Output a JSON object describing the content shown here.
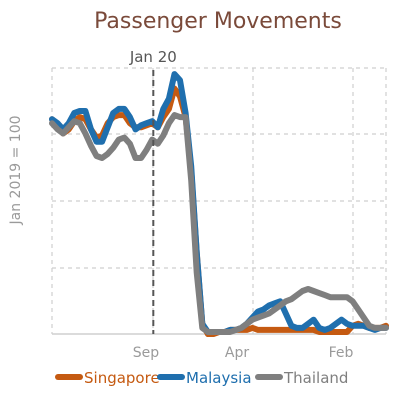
{
  "chart_data": {
    "type": "line",
    "title": "Passenger Movements",
    "ylabel": "Jan 2019 = 100",
    "xlabel": "",
    "grid": true,
    "legend_position": "bottom",
    "ylim": [
      0,
      130
    ],
    "x_tick_labels": [
      "Sep",
      "Apr",
      "Feb"
    ],
    "annotation": {
      "label": "Jan 20",
      "x": 9.1
    },
    "x": [
      0,
      0.5,
      1,
      1.5,
      2,
      2.5,
      3,
      3.5,
      4,
      4.5,
      5,
      5.5,
      6,
      6.5,
      7,
      7.5,
      8,
      8.5,
      9,
      9.5,
      10,
      10.5,
      11,
      11.5,
      12,
      12.5,
      13,
      13.5,
      14,
      14.5,
      15,
      15.5,
      16,
      16.5,
      17,
      17.5,
      18,
      18.5,
      19,
      19.5,
      20,
      20.5,
      21,
      21.5,
      22,
      22.5,
      23,
      23.5,
      24,
      24.5,
      25,
      25.5,
      26,
      26.5,
      27,
      27.5,
      28,
      28.5,
      29,
      29.5,
      30
    ],
    "series": [
      {
        "name": "Singapore",
        "color": "#c55a11",
        "values": [
          105,
          102,
          98,
          100,
          104,
          106,
          105,
          100,
          96,
          97,
          103,
          106,
          107,
          107,
          103,
          101,
          101,
          102,
          103,
          101,
          106,
          110,
          120,
          116,
          106,
          80,
          40,
          5,
          0,
          0,
          1,
          1,
          2,
          2,
          2,
          2,
          3,
          2,
          2,
          2,
          2,
          2,
          2,
          2,
          2,
          2,
          2,
          2,
          1,
          1,
          1,
          1,
          1,
          1,
          4,
          5,
          4,
          3,
          3,
          3,
          4
        ]
      },
      {
        "name": "Malaysia",
        "color": "#1f6fae",
        "values": [
          105,
          103,
          100,
          103,
          108,
          109,
          109,
          100,
          94,
          94,
          101,
          108,
          110,
          110,
          106,
          100,
          102,
          103,
          104,
          101,
          110,
          115,
          127,
          124,
          108,
          82,
          40,
          5,
          1,
          1,
          1,
          1,
          2,
          2,
          3,
          5,
          8,
          11,
          12,
          14,
          15,
          16,
          10,
          4,
          3,
          3,
          5,
          7,
          3,
          2,
          3,
          5,
          7,
          5,
          4,
          4,
          4,
          3,
          2,
          3,
          3
        ]
      },
      {
        "name": "Thailand",
        "color": "#7f7f7f",
        "values": [
          103,
          100,
          98,
          101,
          104,
          103,
          98,
          92,
          87,
          86,
          88,
          91,
          95,
          96,
          93,
          86,
          86,
          90,
          95,
          93,
          97,
          103,
          107,
          106,
          106,
          75,
          30,
          3,
          1,
          1,
          1,
          1,
          1,
          2,
          3,
          5,
          7,
          8,
          9,
          10,
          12,
          14,
          16,
          17,
          19,
          21,
          22,
          21,
          20,
          19,
          18,
          18,
          18,
          18,
          16,
          12,
          8,
          4,
          3,
          3,
          3
        ]
      }
    ]
  }
}
